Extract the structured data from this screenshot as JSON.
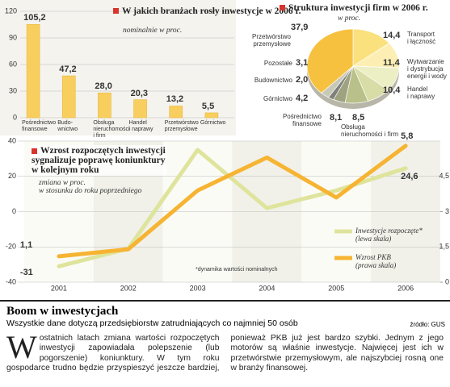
{
  "chart_data": [
    {
      "type": "bar",
      "title": "W jakich branżach rosły inwestycje w 2006 r.",
      "subtitle": "nominalnie w proc.",
      "categories": [
        "Pośrednictwo\nfinansowe",
        "Budo-\nwnictwo",
        "Obsługa\nnieruchomości\ni firm",
        "Handel\ni naprawy",
        "Przetwórstwo\nprzemysłowe",
        "Górnictwo"
      ],
      "values": [
        105.2,
        47.2,
        28.0,
        20.3,
        13.2,
        5.5
      ],
      "value_labels": [
        "105,2",
        "47,2",
        "28,0",
        "20,3",
        "13,2",
        "5,5"
      ],
      "color": "#f8cf5e",
      "ylim": [
        0,
        120
      ],
      "yticks": [
        0,
        30,
        60,
        90,
        120
      ],
      "grid": true
    },
    {
      "type": "pie",
      "title": "Struktura inwestycji firm w 2006 r.",
      "subtitle": "w proc.",
      "categories": [
        "Transport\ni łączność",
        "Wytwarzanie\ni dystrybucja\nenergii i wody",
        "Handel\ni naprawy",
        "Obsługa\nnieruchomości i firm",
        "Pośrednictwo\nfinansowe",
        "Górnictwo",
        "Budownictwo",
        "Pozostałe",
        "Przetwórstwo\nprzemysłowe"
      ],
      "values": [
        14.4,
        11.4,
        10.4,
        8.5,
        8.1,
        4.2,
        2.0,
        3.1,
        37.9
      ],
      "value_labels": [
        "14,4",
        "11,4",
        "10,4",
        "8,5",
        "8,1",
        "4,2",
        "2,0",
        "3,1",
        "37,9"
      ],
      "colors": [
        "#fbe07e",
        "#fdefb3",
        "#eceec4",
        "#d8dca6",
        "#b9c08a",
        "#9ea27f",
        "#7f817a",
        "#c6c8b8",
        "#f7c140"
      ]
    },
    {
      "type": "line",
      "title": "Wzrost rozpoczętych inwestycji\nsygnalizuje poprawę koniunktury\nw kolejnym roku",
      "subtitle": "zmiana w proc.\nw stosunku do roku poprzedniego",
      "annotation": "*dynamika wartości nominalnych",
      "categories": [
        "2001",
        "2002",
        "2003",
        "2004",
        "2005",
        "2006"
      ],
      "series": [
        {
          "name": "Inwestycje rozpoczęte*\n(lewa skala)",
          "color": "#dfe49c",
          "values": [
            -31,
            -21,
            35,
            2,
            12,
            24.6
          ],
          "value_labels": [
            "-31",
            null,
            null,
            null,
            null,
            "24,6"
          ]
        },
        {
          "name": "Wzrost PKB\n(prawa skala)",
          "color": "#f6b432",
          "axis": "y2",
          "values": [
            1.1,
            1.4,
            3.9,
            5.3,
            3.6,
            5.8
          ],
          "value_labels": [
            "1,1",
            null,
            null,
            null,
            null,
            "5,8"
          ]
        }
      ],
      "ylim": [
        -40,
        40
      ],
      "yticks": [
        -40,
        -20,
        0,
        20,
        40
      ],
      "y2lim": [
        0,
        6
      ],
      "y2ticks": [
        0,
        {
          "value": 1.5,
          "label": "1,5"
        },
        3,
        {
          "value": 4.5,
          "label": "4,5"
        }
      ],
      "grid": true
    }
  ],
  "article": {
    "headline": "Boom w inwestycjach",
    "subheadline": "Wszystkie dane dotyczą przedsiębiorstw zatrudniających co najmniej 50 osób",
    "source": "źródło: GUS",
    "drop_cap": "W",
    "body": "ostatnich latach zmiana wartości rozpoczętych inwestycji zapowiadała polepszenie (lub pogorszenie) koniunktury. W tym roku gospodarce trudno będzie przyspieszyć jeszcze bardziej, ponieważ PKB już jest bardzo szybki. Jednym z jego motorów są właśnie inwestycje. Najwięcej jest ich w przetwórstwie przemysłowym, ale najszybciej rosną one w branży finansowej."
  }
}
